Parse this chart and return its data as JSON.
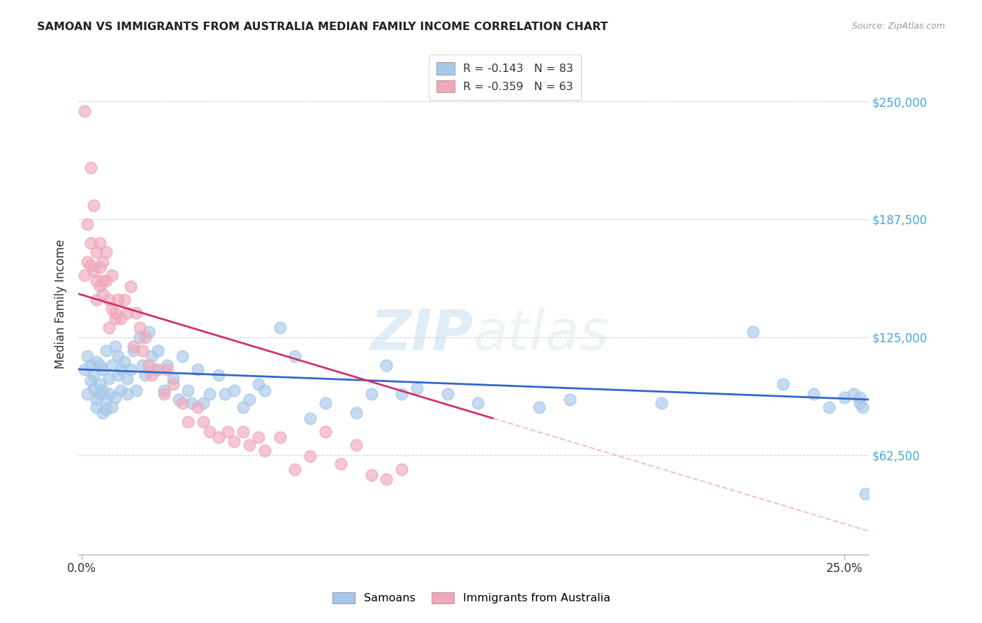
{
  "title": "SAMOAN VS IMMIGRANTS FROM AUSTRALIA MEDIAN FAMILY INCOME CORRELATION CHART",
  "source": "Source: ZipAtlas.com",
  "ylabel": "Median Family Income",
  "ytick_labels": [
    "$62,500",
    "$125,000",
    "$187,500",
    "$250,000"
  ],
  "ytick_values": [
    62500,
    125000,
    187500,
    250000
  ],
  "ymin": 10000,
  "ymax": 275000,
  "xmin": -0.001,
  "xmax": 0.258,
  "legend1_label": "R = -0.143   N = 83",
  "legend2_label": "R = -0.359   N = 63",
  "legend1_r": "-0.143",
  "legend1_n": "83",
  "legend2_r": "-0.359",
  "legend2_n": "63",
  "watermark_zip": "ZIP",
  "watermark_atlas": "atlas",
  "blue_color": "#a8c8e8",
  "pink_color": "#f0a8bc",
  "blue_line_color": "#3366cc",
  "pink_line_color": "#cc3366",
  "pink_dash_color": "#f0c0d0",
  "background_color": "#ffffff",
  "grid_color": "#cccccc",
  "blue_x": [
    0.001,
    0.002,
    0.002,
    0.003,
    0.003,
    0.004,
    0.004,
    0.005,
    0.005,
    0.005,
    0.006,
    0.006,
    0.006,
    0.007,
    0.007,
    0.007,
    0.008,
    0.008,
    0.008,
    0.009,
    0.009,
    0.01,
    0.01,
    0.011,
    0.011,
    0.012,
    0.012,
    0.013,
    0.013,
    0.014,
    0.015,
    0.015,
    0.016,
    0.017,
    0.018,
    0.019,
    0.02,
    0.021,
    0.022,
    0.023,
    0.024,
    0.025,
    0.027,
    0.028,
    0.03,
    0.032,
    0.033,
    0.035,
    0.036,
    0.038,
    0.04,
    0.042,
    0.045,
    0.047,
    0.05,
    0.053,
    0.055,
    0.058,
    0.06,
    0.065,
    0.07,
    0.075,
    0.08,
    0.09,
    0.095,
    0.1,
    0.105,
    0.11,
    0.12,
    0.13,
    0.15,
    0.16,
    0.19,
    0.22,
    0.23,
    0.24,
    0.245,
    0.25,
    0.253,
    0.255,
    0.255,
    0.256,
    0.257
  ],
  "blue_y": [
    108000,
    95000,
    115000,
    102000,
    110000,
    98000,
    105000,
    92000,
    88000,
    112000,
    100000,
    95000,
    110000,
    85000,
    97000,
    108000,
    92000,
    118000,
    87000,
    103000,
    95000,
    110000,
    88000,
    120000,
    93000,
    105000,
    115000,
    108000,
    97000,
    112000,
    103000,
    95000,
    108000,
    118000,
    97000,
    125000,
    110000,
    105000,
    128000,
    115000,
    108000,
    118000,
    97000,
    110000,
    103000,
    92000,
    115000,
    97000,
    90000,
    108000,
    90000,
    95000,
    105000,
    95000,
    97000,
    88000,
    92000,
    100000,
    97000,
    130000,
    115000,
    82000,
    90000,
    85000,
    95000,
    110000,
    95000,
    98000,
    95000,
    90000,
    88000,
    92000,
    90000,
    128000,
    100000,
    95000,
    88000,
    93000,
    95000,
    90000,
    93000,
    88000,
    42000
  ],
  "pink_x": [
    0.001,
    0.001,
    0.002,
    0.002,
    0.003,
    0.003,
    0.003,
    0.004,
    0.004,
    0.005,
    0.005,
    0.005,
    0.006,
    0.006,
    0.006,
    0.007,
    0.007,
    0.007,
    0.008,
    0.008,
    0.009,
    0.009,
    0.01,
    0.01,
    0.011,
    0.011,
    0.012,
    0.013,
    0.014,
    0.015,
    0.016,
    0.017,
    0.018,
    0.019,
    0.02,
    0.021,
    0.022,
    0.023,
    0.025,
    0.027,
    0.028,
    0.03,
    0.033,
    0.035,
    0.038,
    0.04,
    0.042,
    0.045,
    0.048,
    0.05,
    0.053,
    0.055,
    0.058,
    0.06,
    0.065,
    0.07,
    0.075,
    0.08,
    0.085,
    0.09,
    0.095,
    0.1,
    0.105
  ],
  "pink_y": [
    245000,
    158000,
    185000,
    165000,
    215000,
    175000,
    163000,
    195000,
    160000,
    170000,
    155000,
    145000,
    152000,
    162000,
    175000,
    155000,
    165000,
    148000,
    170000,
    155000,
    145000,
    130000,
    158000,
    140000,
    135000,
    138000,
    145000,
    135000,
    145000,
    138000,
    152000,
    120000,
    138000,
    130000,
    118000,
    125000,
    110000,
    105000,
    108000,
    95000,
    108000,
    100000,
    90000,
    80000,
    88000,
    80000,
    75000,
    72000,
    75000,
    70000,
    75000,
    68000,
    72000,
    65000,
    72000,
    55000,
    62000,
    75000,
    58000,
    68000,
    52000,
    50000,
    55000
  ]
}
